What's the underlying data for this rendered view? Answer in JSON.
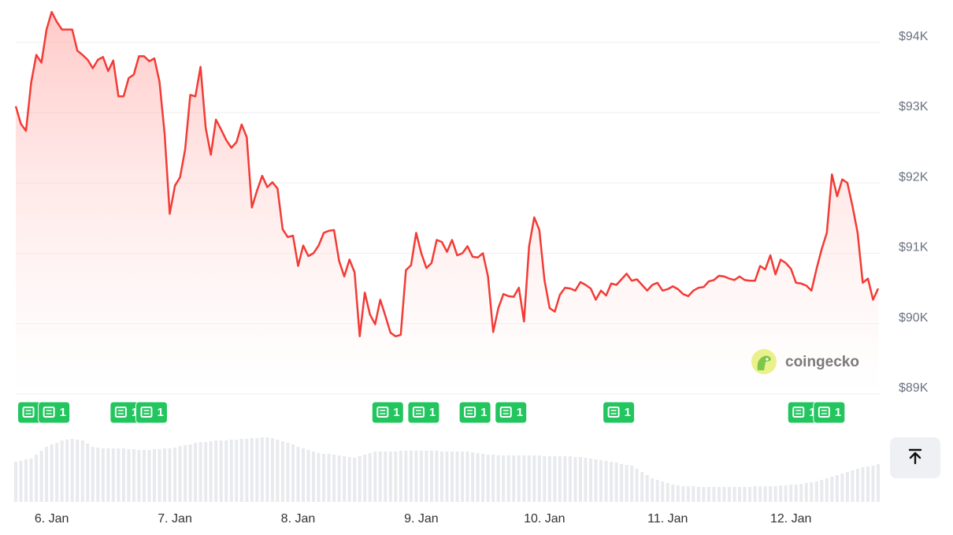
{
  "chart_data": {
    "type": "line",
    "color": "#f23b36",
    "ylim": [
      89000,
      94600
    ],
    "yticks": [
      {
        "value": 89000,
        "label": "$89K"
      },
      {
        "value": 90000,
        "label": "$90K"
      },
      {
        "value": 91000,
        "label": "$91K"
      },
      {
        "value": 92000,
        "label": "$92K"
      },
      {
        "value": 93000,
        "label": "$93K"
      },
      {
        "value": 94000,
        "label": "$94K"
      }
    ],
    "grid": true,
    "categories": [
      null,
      null,
      null,
      null,
      null,
      null,
      null,
      "6. Jan",
      null,
      null,
      null,
      null,
      null,
      null,
      null,
      null,
      null,
      null,
      null,
      null,
      null,
      null,
      null,
      null,
      null,
      null,
      null,
      null,
      null,
      null,
      null,
      "7. Jan",
      null,
      null,
      null,
      null,
      null,
      null,
      null,
      null,
      null,
      null,
      null,
      null,
      null,
      null,
      null,
      null,
      null,
      null,
      null,
      null,
      null,
      null,
      null,
      "8. Jan",
      null,
      null,
      null,
      null,
      null,
      null,
      null,
      null,
      null,
      null,
      null,
      null,
      null,
      null,
      null,
      null,
      null,
      null,
      null,
      null,
      null,
      null,
      null,
      "9. Jan",
      null,
      null,
      null,
      null,
      null,
      null,
      null,
      null,
      null,
      null,
      null,
      null,
      null,
      null,
      null,
      null,
      null,
      null,
      null,
      null,
      null,
      null,
      null,
      "10. Jan",
      null,
      null,
      null,
      null,
      null,
      null,
      null,
      null,
      null,
      null,
      null,
      null,
      null,
      null,
      null,
      null,
      null,
      null,
      null,
      null,
      null,
      null,
      null,
      "11. Jan",
      null,
      null,
      null,
      null,
      null,
      null,
      null,
      null,
      null,
      null,
      null,
      null,
      null,
      null,
      null,
      null,
      null,
      null,
      null,
      null,
      null,
      null,
      null,
      "12. Jan",
      null,
      null,
      null,
      null,
      null,
      null,
      null,
      null,
      null,
      null,
      null,
      null,
      null,
      null,
      null,
      null,
      null
    ],
    "values": [
      93090,
      92840,
      92740,
      93430,
      93820,
      93710,
      94180,
      94430,
      94290,
      94180,
      94180,
      94180,
      93880,
      93820,
      93750,
      93630,
      93750,
      93790,
      93590,
      93740,
      93230,
      93230,
      93490,
      93540,
      93800,
      93800,
      93730,
      93770,
      93440,
      92700,
      91560,
      91960,
      92080,
      92480,
      93250,
      93230,
      93650,
      92780,
      92400,
      92900,
      92760,
      92610,
      92500,
      92580,
      92830,
      92650,
      91650,
      91890,
      92100,
      91940,
      92010,
      91920,
      91340,
      91230,
      91250,
      90820,
      91110,
      90960,
      91000,
      91110,
      91290,
      91320,
      91330,
      90890,
      90670,
      90910,
      90730,
      89820,
      90440,
      90130,
      89990,
      90340,
      90110,
      89870,
      89820,
      89840,
      90760,
      90830,
      91290,
      91000,
      90790,
      90860,
      91190,
      91160,
      91020,
      91190,
      90970,
      91000,
      91100,
      90950,
      90940,
      91000,
      90670,
      89880,
      90220,
      90420,
      90390,
      90380,
      90510,
      90030,
      91100,
      91510,
      91330,
      90620,
      90220,
      90170,
      90410,
      90510,
      90500,
      90470,
      90590,
      90550,
      90500,
      90340,
      90470,
      90400,
      90570,
      90550,
      90630,
      90710,
      90610,
      90630,
      90550,
      90470,
      90550,
      90580,
      90470,
      90490,
      90530,
      90490,
      90420,
      90390,
      90470,
      90510,
      90520,
      90600,
      90620,
      90680,
      90670,
      90640,
      90620,
      90670,
      90620,
      90610,
      90610,
      90820,
      90770,
      90970,
      90700,
      90910,
      90860,
      90780,
      90580,
      90570,
      90540,
      90470,
      90780,
      91060,
      91290,
      92120,
      91810,
      92050,
      92000,
      91670,
      91290,
      90580,
      90640,
      90340,
      90500
    ],
    "volume": {
      "color": "#e8eaed",
      "values": [
        51,
        52,
        54,
        55,
        60,
        65,
        70,
        73,
        75,
        78,
        79,
        80,
        79,
        78,
        74,
        70,
        69,
        68,
        68,
        68,
        68,
        68,
        67,
        67,
        66,
        66,
        66,
        67,
        67,
        68,
        68,
        69,
        71,
        72,
        73,
        75,
        76,
        76,
        77,
        78,
        78,
        78,
        79,
        79,
        80,
        80,
        81,
        81,
        82,
        82,
        81,
        79,
        77,
        75,
        73,
        70,
        68,
        66,
        64,
        62,
        61,
        61,
        60,
        59,
        58,
        57,
        56,
        58,
        60,
        62,
        64,
        64,
        64,
        64,
        64,
        65,
        65,
        65,
        65,
        65,
        65,
        65,
        65,
        64,
        64,
        64,
        64,
        64,
        64,
        63,
        62,
        61,
        60,
        60,
        59,
        59,
        59,
        59,
        59,
        59,
        59,
        59,
        59,
        58,
        58,
        58,
        58,
        58,
        58,
        57,
        57,
        56,
        55,
        54,
        53,
        52,
        51,
        50,
        48,
        47,
        46,
        42,
        38,
        34,
        30,
        28,
        26,
        24,
        22,
        21,
        20,
        20,
        20,
        19,
        19,
        19,
        19,
        19,
        19,
        19,
        19,
        19,
        19,
        19,
        20,
        20,
        20,
        20,
        20,
        21,
        21,
        22,
        22,
        23,
        24,
        25,
        26,
        28,
        30,
        32,
        34,
        36,
        38,
        40,
        42,
        44,
        45,
        46,
        48
      ]
    },
    "news": [
      {
        "index": 3,
        "count": 1
      },
      {
        "index": 7,
        "count": 1
      },
      {
        "index": 21,
        "count": 1
      },
      {
        "index": 26,
        "count": 1
      },
      {
        "index": 72,
        "count": 1
      },
      {
        "index": 79,
        "count": 1
      },
      {
        "index": 89,
        "count": 1
      },
      {
        "index": 96,
        "count": 1
      },
      {
        "index": 117,
        "count": 1
      },
      {
        "index": 153,
        "count": 1
      },
      {
        "index": 158,
        "count": 1
      }
    ],
    "watermark": "coingecko"
  }
}
